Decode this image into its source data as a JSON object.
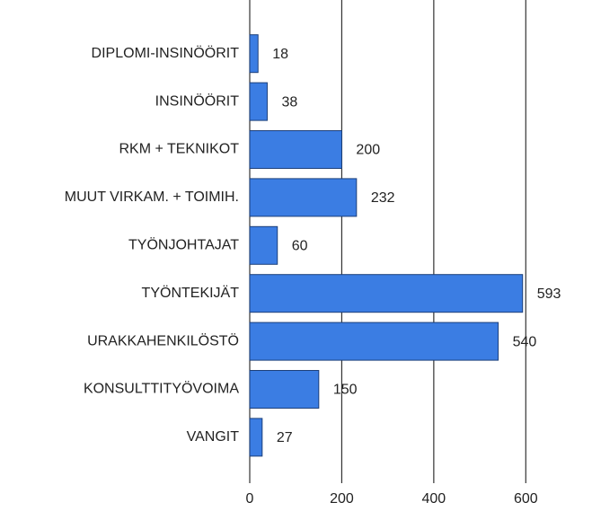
{
  "chart_data": {
    "type": "bar",
    "orientation": "horizontal",
    "categories": [
      "DIPLOMI-INSINÖÖRIT",
      "INSINÖÖRIT",
      "RKM + TEKNIKOT",
      "MUUT VIRKAM. + TOIMIH.",
      "TYÖNJOHTAJAT",
      "TYÖNTEKIJÄT",
      "URAKKAHENKILÖSTÖ",
      "KONSULTTITYÖVOIMA",
      "VANGIT"
    ],
    "values": [
      18,
      38,
      200,
      232,
      60,
      593,
      540,
      150,
      27
    ],
    "color": "#3b7de3",
    "xlim": [
      0,
      740
    ],
    "xticks": [
      0,
      200,
      400,
      600
    ],
    "grid": true
  }
}
